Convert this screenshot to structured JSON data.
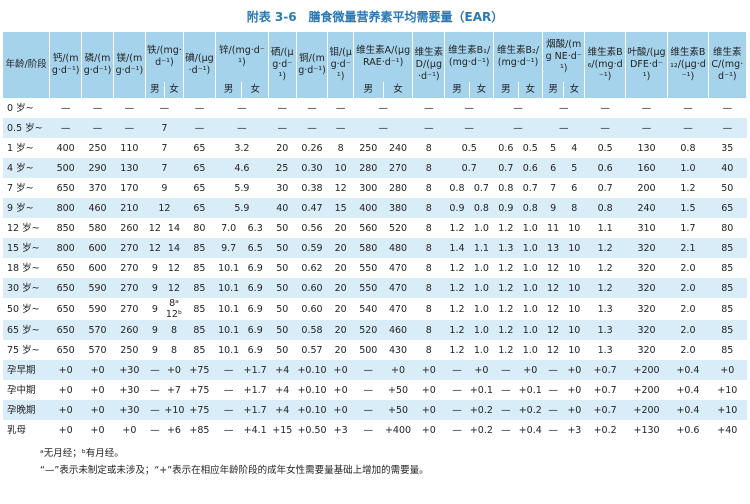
{
  "header": {
    "title": "附表 3-6　膳食微量营养素平均需要量（EAR）"
  },
  "table": {
    "columns": [
      {
        "label": "年龄/阶段"
      },
      {
        "label": "钙/(mg·d⁻¹)"
      },
      {
        "label": "磷/(mg·d⁻¹)"
      },
      {
        "label": "镁/(mg·d⁻¹)"
      },
      {
        "label": "铁/(mg·d⁻¹)",
        "sub": [
          "男",
          "女"
        ]
      },
      {
        "label": "碘/(μg·d⁻¹)"
      },
      {
        "label": "锌/(mg·d⁻¹)",
        "sub": [
          "男",
          "女"
        ]
      },
      {
        "label": "硒/(μg·d⁻¹)"
      },
      {
        "label": "铜/(mg·d⁻¹)"
      },
      {
        "label": "钼/(μg·d⁻¹)"
      },
      {
        "label": "维生素A/(μgRAE·d⁻¹)",
        "sub": [
          "男",
          "女"
        ]
      },
      {
        "label": "维生素D/(μg·d⁻¹)"
      },
      {
        "label": "维生素B₁/(mg·d⁻¹)",
        "sub": [
          "男",
          "女"
        ]
      },
      {
        "label": "维生素B₂/(mg·d⁻¹)",
        "sub": [
          "男",
          "女"
        ]
      },
      {
        "label": "烟酸/(mg NE·d⁻¹)",
        "sub": [
          "男",
          "女"
        ]
      },
      {
        "label": "维生素B₆/(mg·d⁻¹)"
      },
      {
        "label": "叶酸/(μg DFE·d⁻¹)"
      },
      {
        "label": "维生素B₁₂/(μg·d⁻¹)"
      },
      {
        "label": "维生素C/(mg·d⁻¹)"
      }
    ],
    "rows": [
      [
        "0 岁~",
        "—",
        "—",
        "—",
        "—",
        null,
        "—",
        "—",
        null,
        "—",
        "—",
        "—",
        "—",
        null,
        "—",
        "—",
        null,
        "—",
        null,
        "—",
        null,
        "—",
        "—",
        "—",
        "—"
      ],
      [
        "0.5 岁~",
        "—",
        "—",
        "—",
        "7",
        null,
        "—",
        "—",
        null,
        "—",
        "—",
        "—",
        "—",
        null,
        "—",
        "—",
        null,
        "—",
        null,
        "—",
        null,
        "—",
        "—",
        "—",
        "—"
      ],
      [
        "1 岁~",
        "400",
        "250",
        "110",
        "7",
        null,
        "65",
        "3.2",
        null,
        "20",
        "0.26",
        "8",
        "250",
        "240",
        "8",
        "0.5",
        null,
        "0.6",
        "0.5",
        "5",
        "4",
        "0.5",
        "130",
        "0.8",
        "35"
      ],
      [
        "4 岁~",
        "500",
        "290",
        "130",
        "7",
        null,
        "65",
        "4.6",
        null,
        "25",
        "0.30",
        "10",
        "280",
        "270",
        "8",
        "0.7",
        null,
        "0.7",
        "0.6",
        "6",
        "5",
        "0.6",
        "160",
        "1.0",
        "40"
      ],
      [
        "7 岁~",
        "650",
        "370",
        "170",
        "9",
        null,
        "65",
        "5.9",
        null,
        "30",
        "0.38",
        "12",
        "300",
        "280",
        "8",
        "0.8",
        "0.7",
        "0.8",
        "0.7",
        "7",
        "6",
        "0.7",
        "200",
        "1.2",
        "50"
      ],
      [
        "9 岁~",
        "800",
        "460",
        "210",
        "12",
        null,
        "65",
        "5.9",
        null,
        "40",
        "0.47",
        "15",
        "400",
        "380",
        "8",
        "0.9",
        "0.8",
        "0.9",
        "0.8",
        "9",
        "8",
        "0.8",
        "240",
        "1.5",
        "65"
      ],
      [
        "12 岁~",
        "850",
        "580",
        "260",
        "12",
        "14",
        "80",
        "7.0",
        "6.3",
        "50",
        "0.56",
        "20",
        "560",
        "520",
        "8",
        "1.2",
        "1.0",
        "1.2",
        "1.0",
        "11",
        "10",
        "1.1",
        "310",
        "1.7",
        "80"
      ],
      [
        "15 岁~",
        "800",
        "600",
        "270",
        "12",
        "14",
        "85",
        "9.7",
        "6.5",
        "50",
        "0.59",
        "20",
        "580",
        "480",
        "8",
        "1.4",
        "1.1",
        "1.3",
        "1.0",
        "13",
        "10",
        "1.2",
        "320",
        "2.1",
        "85"
      ],
      [
        "18 岁~",
        "650",
        "600",
        "270",
        "9",
        "12",
        "85",
        "10.1",
        "6.9",
        "50",
        "0.62",
        "20",
        "550",
        "470",
        "8",
        "1.2",
        "1.0",
        "1.2",
        "1.0",
        "12",
        "10",
        "1.2",
        "320",
        "2.0",
        "85"
      ],
      [
        "30 岁~",
        "650",
        "590",
        "270",
        "9",
        "12",
        "85",
        "10.1",
        "6.9",
        "50",
        "0.60",
        "20",
        "550",
        "470",
        "8",
        "1.2",
        "1.0",
        "1.2",
        "1.0",
        "12",
        "10",
        "1.2",
        "320",
        "2.0",
        "85"
      ],
      [
        "50 岁~",
        "650",
        "590",
        "270",
        "9",
        "8ᵃ\n12ᵇ",
        "85",
        "10.1",
        "6.9",
        "50",
        "0.60",
        "20",
        "540",
        "470",
        "8",
        "1.2",
        "1.0",
        "1.2",
        "1.0",
        "12",
        "10",
        "1.3",
        "320",
        "2.0",
        "85"
      ],
      [
        "65 岁~",
        "650",
        "570",
        "260",
        "9",
        "8",
        "85",
        "10.1",
        "6.9",
        "50",
        "0.58",
        "20",
        "520",
        "460",
        "8",
        "1.2",
        "1.0",
        "1.2",
        "1.0",
        "12",
        "10",
        "1.3",
        "320",
        "2.0",
        "85"
      ],
      [
        "75 岁~",
        "650",
        "570",
        "250",
        "9",
        "8",
        "85",
        "10.1",
        "6.9",
        "50",
        "0.57",
        "20",
        "500",
        "430",
        "8",
        "1.2",
        "1.0",
        "1.2",
        "1.0",
        "12",
        "10",
        "1.3",
        "320",
        "2.0",
        "85"
      ],
      [
        "孕早期",
        "+0",
        "+0",
        "+30",
        "—",
        "+0",
        "+75",
        "—",
        "+1.7",
        "+4",
        "+0.10",
        "+0",
        "—",
        "+0",
        "+0",
        "—",
        "+0",
        "—",
        "+0",
        "—",
        "+0",
        "+0.7",
        "+200",
        "+0.4",
        "+0"
      ],
      [
        "孕中期",
        "+0",
        "+0",
        "+30",
        "—",
        "+7",
        "+75",
        "—",
        "+1.7",
        "+4",
        "+0.10",
        "+0",
        "—",
        "+50",
        "+0",
        "—",
        "+0.1",
        "—",
        "+0.1",
        "—",
        "+0",
        "+0.7",
        "+200",
        "+0.4",
        "+10"
      ],
      [
        "孕晚期",
        "+0",
        "+0",
        "+30",
        "—",
        "+10",
        "+75",
        "—",
        "+1.7",
        "+4",
        "+0.10",
        "+0",
        "—",
        "+50",
        "+0",
        "—",
        "+0.2",
        "—",
        "+0.2",
        "—",
        "+0",
        "+0.7",
        "+200",
        "+0.4",
        "+10"
      ],
      [
        "乳母",
        "+0",
        "+0",
        "+0",
        "—",
        "+6",
        "+85",
        "—",
        "+4.1",
        "+15",
        "+0.50",
        "+3",
        "—",
        "+400",
        "+0",
        "—",
        "+0.2",
        "—",
        "+0.4",
        "—",
        "+3",
        "+0.2",
        "+130",
        "+0.6",
        "+40"
      ]
    ]
  },
  "footnotes": [
    "ᵃ无月经；ᵇ有月经。",
    "“—”表示未制定或未涉及；“+”表示在相应年龄阶段的成年女性需要量基础上增加的需要量。"
  ]
}
